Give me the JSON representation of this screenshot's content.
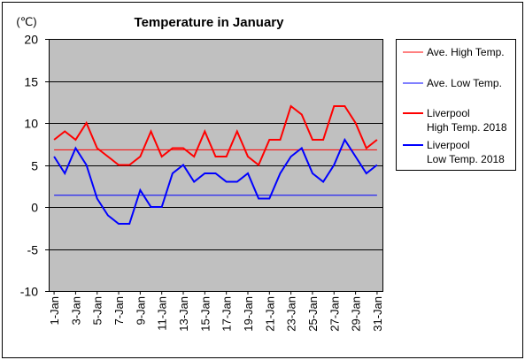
{
  "chart_data": {
    "type": "line",
    "title": "Temperature in January",
    "unit": "(℃)",
    "ylim": [
      -10,
      20
    ],
    "y_ticks": [
      -10,
      -5,
      0,
      5,
      10,
      15,
      20
    ],
    "grid": true,
    "legend_position": "right",
    "x": [
      "1-Jan",
      "2-Jan",
      "3-Jan",
      "4-Jan",
      "5-Jan",
      "6-Jan",
      "7-Jan",
      "8-Jan",
      "9-Jan",
      "10-Jan",
      "11-Jan",
      "12-Jan",
      "13-Jan",
      "14-Jan",
      "15-Jan",
      "16-Jan",
      "17-Jan",
      "18-Jan",
      "19-Jan",
      "20-Jan",
      "21-Jan",
      "22-Jan",
      "23-Jan",
      "24-Jan",
      "25-Jan",
      "26-Jan",
      "27-Jan",
      "28-Jan",
      "29-Jan",
      "30-Jan",
      "31-Jan"
    ],
    "x_tick_labels": [
      "1-Jan",
      "3-Jan",
      "5-Jan",
      "7-Jan",
      "9-Jan",
      "11-Jan",
      "13-Jan",
      "15-Jan",
      "17-Jan",
      "19-Jan",
      "21-Jan",
      "23-Jan",
      "25-Jan",
      "27-Jan",
      "29-Jan",
      "31-Jan"
    ],
    "series": [
      {
        "name": "Ave. High Temp.",
        "color": "#ff0000",
        "style": "thin",
        "values": [
          6.8,
          6.8,
          6.8,
          6.8,
          6.8,
          6.8,
          6.8,
          6.8,
          6.8,
          6.8,
          6.8,
          6.8,
          6.8,
          6.8,
          6.8,
          6.8,
          6.8,
          6.8,
          6.8,
          6.8,
          6.8,
          6.8,
          6.8,
          6.8,
          6.8,
          6.8,
          6.8,
          6.8,
          6.8,
          6.8,
          6.8
        ]
      },
      {
        "name": "Ave. Low Temp.",
        "color": "#0000ff",
        "style": "thin",
        "values": [
          1.4,
          1.4,
          1.4,
          1.4,
          1.4,
          1.4,
          1.4,
          1.4,
          1.4,
          1.4,
          1.4,
          1.4,
          1.4,
          1.4,
          1.4,
          1.4,
          1.4,
          1.4,
          1.4,
          1.4,
          1.4,
          1.4,
          1.4,
          1.4,
          1.4,
          1.4,
          1.4,
          1.4,
          1.4,
          1.4,
          1.4
        ]
      },
      {
        "name": "Liverpool High Temp. 2018",
        "name_lines": [
          "Liverpool",
          "High Temp. 2018"
        ],
        "color": "#ff0000",
        "style": "thick",
        "values": [
          8,
          9,
          8,
          10,
          7,
          6,
          5,
          5,
          6,
          9,
          6,
          7,
          7,
          6,
          9,
          6,
          6,
          9,
          6,
          5,
          8,
          8,
          12,
          11,
          8,
          8,
          12,
          12,
          10,
          7,
          8
        ]
      },
      {
        "name": "Liverpool Low Temp. 2018",
        "name_lines": [
          "Liverpool",
          "Low Temp. 2018"
        ],
        "color": "#0000ff",
        "style": "thick",
        "values": [
          6,
          4,
          7,
          5,
          1,
          -1,
          -2,
          -2,
          2,
          0,
          0,
          4,
          5,
          3,
          4,
          4,
          3,
          3,
          4,
          1,
          1,
          4,
          6,
          7,
          4,
          3,
          5,
          8,
          6,
          4,
          5
        ]
      }
    ]
  }
}
